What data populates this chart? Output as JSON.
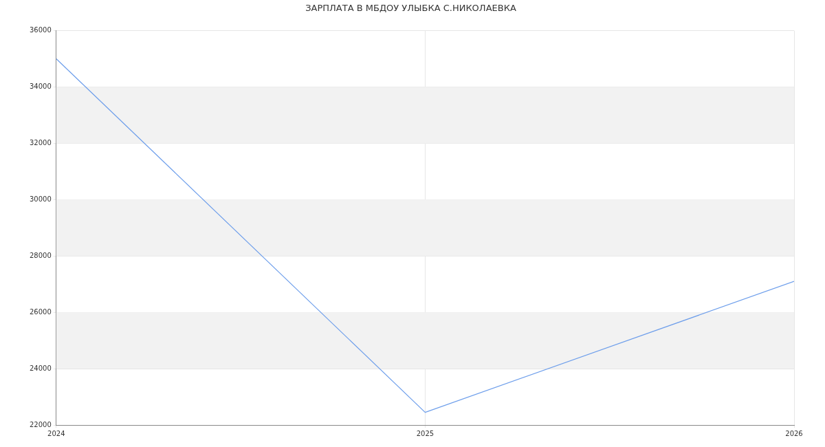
{
  "chart_data": {
    "type": "line",
    "title": "ЗАРПЛАТА В МБДОУ УЛЫБКА С.НИКОЛАЕВКА",
    "x": [
      2024,
      2025,
      2026
    ],
    "series": [
      {
        "color": "#6d9eeb",
        "values": [
          35000,
          22450,
          27100
        ]
      }
    ],
    "xlim": [
      2024,
      2026
    ],
    "xticks": [
      2024,
      2025,
      2026
    ],
    "ylim": [
      22000,
      36000
    ],
    "yticks": [
      22000,
      24000,
      26000,
      28000,
      30000,
      32000,
      34000,
      36000
    ],
    "bands": [
      {
        "axis": "y",
        "from": 24000,
        "to": 26000,
        "color": "#f2f2f2"
      },
      {
        "axis": "y",
        "from": 28000,
        "to": 30000,
        "color": "#f2f2f2"
      },
      {
        "axis": "y",
        "from": 32000,
        "to": 34000,
        "color": "#f2f2f2"
      }
    ],
    "grid": true,
    "legend": false,
    "marker": "none",
    "line_style": "solid"
  }
}
